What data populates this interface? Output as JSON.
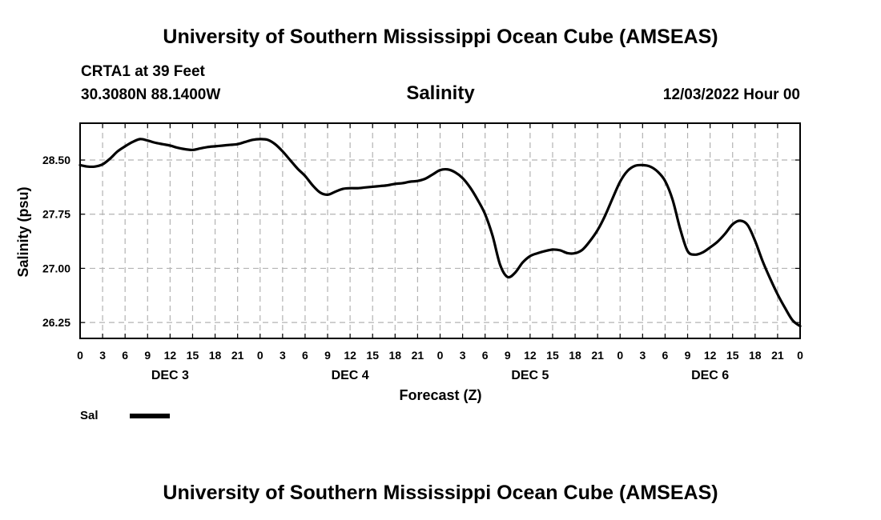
{
  "header": {
    "title_top": "University of Southern Mississippi Ocean Cube (AMSEAS)",
    "station": "CRTA1 at 39 Feet",
    "coords": "30.3080N  88.1400W",
    "variable": "Salinity",
    "datetime": "12/03/2022 Hour 00",
    "title_bottom": "University of Southern Mississippi Ocean Cube (AMSEAS)"
  },
  "legend": {
    "label": "Sal",
    "color": "#000000"
  },
  "chart_data": {
    "type": "line",
    "title": "Salinity",
    "xlabel": "Forecast (Z)",
    "ylabel": "Salinity (psu)",
    "xlim": [
      0,
      96
    ],
    "ylim": [
      26.03,
      29.01
    ],
    "grid": true,
    "y_ticks": [
      26.25,
      27.0,
      27.75,
      28.5
    ],
    "y_tick_labels": [
      "26.25",
      "27.00",
      "27.75",
      "28.50"
    ],
    "x_ticks": [
      0,
      3,
      6,
      9,
      12,
      15,
      18,
      21,
      24,
      27,
      30,
      33,
      36,
      39,
      42,
      45,
      48,
      51,
      54,
      57,
      60,
      63,
      66,
      69,
      72,
      75,
      78,
      81,
      84,
      87,
      90,
      93,
      96
    ],
    "x_tick_labels": [
      "0",
      "3",
      "6",
      "9",
      "12",
      "15",
      "18",
      "21",
      "0",
      "3",
      "6",
      "9",
      "12",
      "15",
      "18",
      "21",
      "0",
      "3",
      "6",
      "9",
      "12",
      "15",
      "18",
      "21",
      "0",
      "3",
      "6",
      "9",
      "12",
      "15",
      "18",
      "21",
      "0"
    ],
    "day_labels": [
      {
        "x": 12,
        "label": "DEC 3"
      },
      {
        "x": 36,
        "label": "DEC 4"
      },
      {
        "x": 60,
        "label": "DEC 5"
      },
      {
        "x": 84,
        "label": "DEC 6"
      }
    ],
    "series": [
      {
        "name": "Sal",
        "x": [
          0,
          1,
          2,
          3,
          4,
          5,
          6,
          7,
          8,
          9,
          10,
          11,
          12,
          13,
          14,
          15,
          16,
          17,
          18,
          19,
          20,
          21,
          22,
          23,
          24,
          25,
          26,
          27,
          28,
          29,
          30,
          31,
          32,
          33,
          34,
          35,
          36,
          37,
          38,
          39,
          40,
          41,
          42,
          43,
          44,
          45,
          46,
          47,
          48,
          49,
          50,
          51,
          52,
          53,
          54,
          55,
          56,
          57,
          58,
          59,
          60,
          61,
          62,
          63,
          64,
          65,
          66,
          67,
          68,
          69,
          70,
          71,
          72,
          73,
          74,
          75,
          76,
          77,
          78,
          79,
          80,
          81,
          82,
          83,
          84,
          85,
          86,
          87,
          88,
          89,
          90,
          91,
          92,
          93,
          94,
          95,
          96
        ],
        "values": [
          28.43,
          28.41,
          28.41,
          28.44,
          28.52,
          28.62,
          28.69,
          28.75,
          28.79,
          28.77,
          28.74,
          28.72,
          28.7,
          28.67,
          28.65,
          28.64,
          28.66,
          28.68,
          28.69,
          28.7,
          28.71,
          28.72,
          28.75,
          28.78,
          28.79,
          28.78,
          28.72,
          28.62,
          28.5,
          28.38,
          28.28,
          28.15,
          28.05,
          28.02,
          28.06,
          28.1,
          28.11,
          28.11,
          28.12,
          28.13,
          28.14,
          28.15,
          28.17,
          28.18,
          28.2,
          28.21,
          28.24,
          28.3,
          28.36,
          28.37,
          28.33,
          28.25,
          28.12,
          27.95,
          27.75,
          27.45,
          27.05,
          26.88,
          26.94,
          27.08,
          27.17,
          27.21,
          27.24,
          27.26,
          27.25,
          27.21,
          27.21,
          27.26,
          27.38,
          27.53,
          27.73,
          27.97,
          28.2,
          28.35,
          28.42,
          28.43,
          28.41,
          28.34,
          28.21,
          27.95,
          27.55,
          27.24,
          27.19,
          27.22,
          27.29,
          27.37,
          27.48,
          27.61,
          27.66,
          27.6,
          27.38,
          27.1,
          26.86,
          26.64,
          26.45,
          26.28,
          26.2
        ]
      }
    ]
  }
}
